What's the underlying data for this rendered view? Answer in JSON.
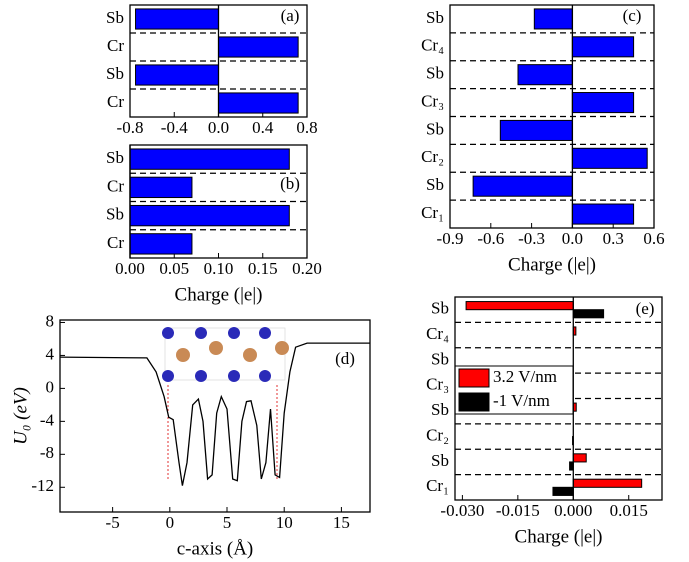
{
  "chart_data": [
    {
      "type": "hbar",
      "annotation": "(a)",
      "categories": [
        "Sb",
        "Cr",
        "Sb",
        "Cr"
      ],
      "values": [
        -0.75,
        0.72,
        -0.75,
        0.72
      ],
      "color": "#0000ff",
      "xlim": [
        -0.8,
        0.8
      ],
      "xticks": [
        -0.8,
        -0.4,
        {
          "value": 0,
          "label": "0.0"
        },
        0.4,
        0.8
      ]
    },
    {
      "type": "hbar",
      "annotation": "(b)",
      "xlabel": "Charge (|e|)",
      "categories": [
        "Sb",
        "Cr",
        "Sb",
        "Cr"
      ],
      "values": [
        0.18,
        0.07,
        0.18,
        0.07
      ],
      "color": "#0000ff",
      "xlim": [
        0,
        0.2
      ],
      "xticks": [
        {
          "value": 0,
          "label": "0.00"
        },
        0.05,
        {
          "value": 0.1,
          "label": "0.10"
        },
        0.15,
        {
          "value": 0.2,
          "label": "0.20"
        }
      ]
    },
    {
      "type": "hbar",
      "annotation": "(c)",
      "xlabel": "Charge (|e|)",
      "categories": [
        "Sb",
        "Cr₄",
        "Sb",
        "Cr₃",
        "Sb",
        "Cr₂",
        "Sb",
        "Cr₁"
      ],
      "values": [
        -0.28,
        0.45,
        -0.4,
        0.45,
        -0.53,
        0.55,
        -0.73,
        0.45
      ],
      "color": "#0000ff",
      "xlim": [
        -0.9,
        0.6
      ],
      "xticks": [
        -0.9,
        -0.6,
        -0.3,
        {
          "value": 0,
          "label": "0.0"
        },
        0.3,
        0.6
      ]
    },
    {
      "type": "line",
      "annotation": "(d)",
      "xlabel": "c-axis (Å)",
      "ylabel": "U₀ (eV)",
      "color": "#000000",
      "x": [
        -9.6,
        -2,
        -1.2,
        -0.5,
        -0.1,
        0.3,
        0.8,
        1.1,
        1.5,
        2.0,
        2.5,
        2.9,
        3.3,
        3.7,
        4.1,
        4.5,
        5.0,
        5.5,
        5.9,
        6.3,
        6.7,
        7.1,
        7.6,
        8.0,
        8.4,
        8.8,
        9.2,
        9.6,
        10.0,
        10.5,
        11,
        12,
        17.5
      ],
      "values": [
        3.8,
        3.7,
        2,
        -1,
        -3.5,
        -3.8,
        -9,
        -11.8,
        -9,
        -2,
        -1.3,
        -4,
        -11,
        -10.5,
        -3,
        -1,
        -2.5,
        -11,
        -11.2,
        -4,
        -1.6,
        -1.5,
        -4.5,
        -11,
        -9,
        -2.5,
        -10.5,
        -10.8,
        -3,
        2,
        5,
        5.5,
        5.5
      ],
      "xlim": [
        -9.6,
        17.5
      ],
      "xticks": [
        -5,
        0,
        5,
        10,
        15
      ],
      "ylim": [
        -15,
        8.3
      ],
      "yticks": [
        8,
        4,
        0,
        -4,
        -8,
        -12
      ]
    },
    {
      "type": "hbar",
      "annotation": "(e)",
      "xlabel": "Charge (|e|)",
      "categories": [
        "Sb",
        "Cr₄",
        "Sb",
        "Cr₃",
        "Sb",
        "Cr₂",
        "Sb",
        "Cr₁"
      ],
      "series": [
        {
          "name": "3.2 V/nm",
          "color": "#ff0000",
          "values": [
            -0.029,
            0.0007,
            0,
            0,
            0.0008,
            0,
            0.0035,
            0.0185
          ]
        },
        {
          "name": "-1 V/nm",
          "color": "#000000",
          "values": [
            0.0082,
            0,
            0,
            0,
            0,
            -0.0002,
            -0.001,
            -0.0055
          ]
        }
      ],
      "xlim": [
        -0.032,
        0.024
      ],
      "xticks": [
        {
          "value": -0.03,
          "label": "-0.030"
        },
        -0.015,
        {
          "value": 0,
          "label": "0.000"
        },
        0.015
      ]
    }
  ]
}
